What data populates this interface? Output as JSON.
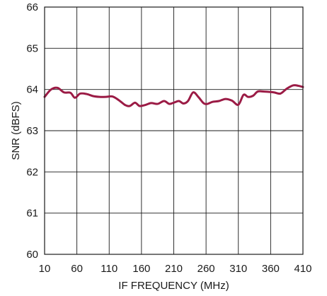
{
  "chart_data": {
    "type": "line",
    "xlabel": "IF FREQUENCY (MHz)",
    "ylabel": "SNR (dBFS)",
    "xlim": [
      10,
      410
    ],
    "ylim": [
      60,
      66
    ],
    "x_ticks": [
      10,
      60,
      110,
      160,
      210,
      260,
      310,
      360,
      410
    ],
    "y_ticks": [
      60,
      61,
      62,
      63,
      64,
      65,
      66
    ],
    "grid": true,
    "legend": "none",
    "series": [
      {
        "color": "#9b1b45",
        "x": [
          10,
          20,
          30,
          40,
          50,
          57,
          65,
          75,
          85,
          95,
          105,
          115,
          125,
          135,
          142,
          150,
          157,
          165,
          175,
          185,
          195,
          203,
          210,
          218,
          225,
          232,
          240,
          248,
          256,
          262,
          270,
          280,
          290,
          300,
          310,
          318,
          325,
          333,
          340,
          350,
          365,
          375,
          385,
          395,
          403,
          410
        ],
        "y": [
          63.82,
          64.0,
          64.04,
          63.93,
          63.92,
          63.8,
          63.9,
          63.89,
          63.84,
          63.82,
          63.82,
          63.83,
          63.74,
          63.62,
          63.6,
          63.68,
          63.6,
          63.62,
          63.67,
          63.65,
          63.72,
          63.65,
          63.68,
          63.72,
          63.66,
          63.72,
          63.93,
          63.82,
          63.67,
          63.65,
          63.7,
          63.72,
          63.77,
          63.73,
          63.63,
          63.87,
          63.82,
          63.85,
          63.95,
          63.95,
          63.93,
          63.9,
          64.02,
          64.1,
          64.09,
          64.06
        ]
      }
    ]
  }
}
